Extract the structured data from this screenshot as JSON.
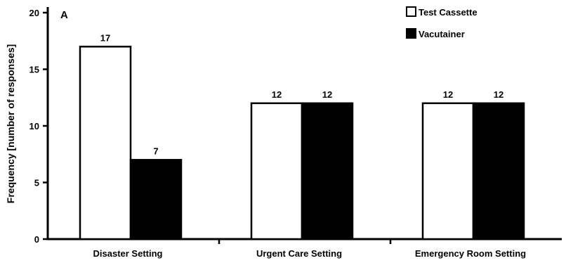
{
  "chart_data": {
    "type": "bar",
    "panel_label": "A",
    "title": "",
    "xlabel": "",
    "ylabel": "Frequency [number of responses]",
    "ylim": [
      0,
      20
    ],
    "yticks": [
      "0",
      "5",
      "10",
      "15",
      "20"
    ],
    "grid": false,
    "legend_position": "top-right",
    "categories": [
      "Disaster Setting",
      "Urgent Care Setting",
      "Emergency Room Setting"
    ],
    "series": [
      {
        "name": "Test Cassette",
        "values": [
          17,
          12,
          12
        ],
        "labels": [
          "17",
          "12",
          "12"
        ],
        "color": "#ffffff"
      },
      {
        "name": "Vacutainer",
        "values": [
          7,
          12,
          12
        ],
        "labels": [
          "7",
          "12",
          "12"
        ],
        "color": "#000000"
      }
    ]
  }
}
